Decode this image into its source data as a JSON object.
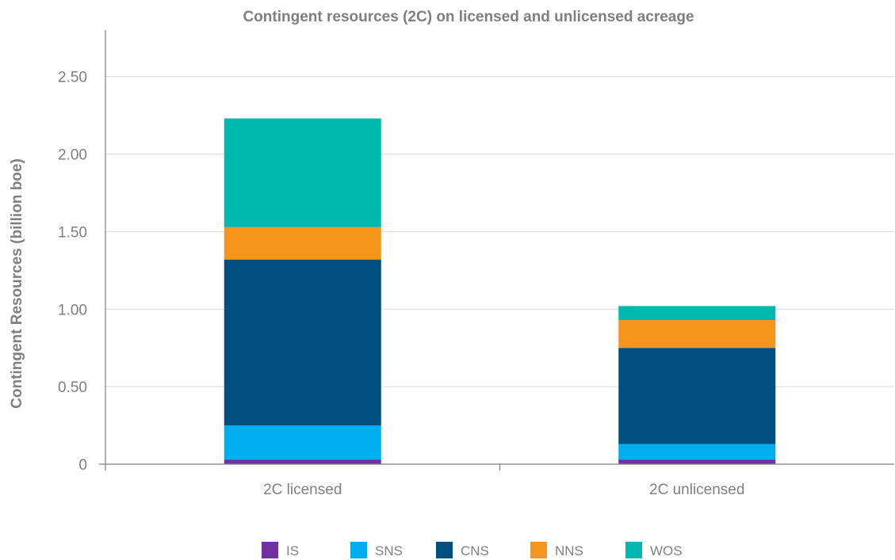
{
  "chart_data": {
    "type": "bar",
    "stacked": true,
    "title": "Contingent resources (2C) on licensed and unlicensed acreage",
    "xlabel": "",
    "ylabel": "Contingent Resources (billion boe)",
    "ylim": [
      0,
      2.8
    ],
    "yticks": [
      0,
      0.5,
      1.0,
      1.5,
      2.0,
      2.5
    ],
    "ytick_labels": [
      "0",
      "0.50",
      "1.00",
      "1.50",
      "2.00",
      "2.50"
    ],
    "grid": true,
    "legend_position": "bottom",
    "categories": [
      "2C licensed",
      "2C unlicensed"
    ],
    "series": [
      {
        "name": "IS",
        "color": "#7030a0",
        "values": [
          0.03,
          0.03
        ]
      },
      {
        "name": "SNS",
        "color": "#00adef",
        "values": [
          0.22,
          0.1
        ]
      },
      {
        "name": "CNS",
        "color": "#004f7f",
        "values": [
          1.07,
          0.62
        ]
      },
      {
        "name": "NNS",
        "color": "#f7941d",
        "values": [
          0.21,
          0.18
        ]
      },
      {
        "name": "WOS",
        "color": "#00b8b0",
        "values": [
          0.7,
          0.09
        ]
      }
    ]
  }
}
